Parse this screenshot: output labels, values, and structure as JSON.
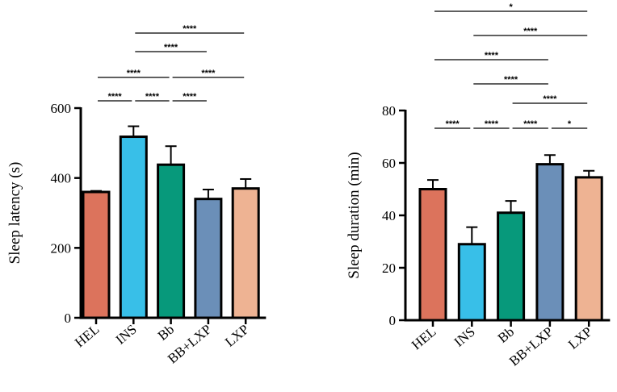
{
  "chart_data": [
    {
      "type": "bar",
      "categories": [
        "HEL",
        "INS",
        "Bb",
        "BB+LXP",
        "LXP"
      ],
      "colors": [
        "#dc735c",
        "#38bfe8",
        "#07997b",
        "#6b8fb8",
        "#eeb393"
      ],
      "values": [
        360,
        518,
        438,
        340,
        370
      ],
      "errors": [
        3,
        30,
        53,
        27,
        27
      ],
      "ylabel": "Sleep latency (s)",
      "ylim": [
        0,
        600
      ],
      "yticks": [
        0,
        200,
        400,
        600
      ],
      "significance": [
        {
          "from": 0,
          "to": 1,
          "label": "****"
        },
        {
          "from": 1,
          "to": 2,
          "label": "****"
        },
        {
          "from": 2,
          "to": 3,
          "label": "****"
        },
        {
          "from": 0,
          "to": 2,
          "label": "****"
        },
        {
          "from": 2,
          "to": 4,
          "label": "****"
        },
        {
          "from": 1,
          "to": 3,
          "label": "****"
        },
        {
          "from": 1,
          "to": 4,
          "label": "****"
        }
      ]
    },
    {
      "type": "bar",
      "categories": [
        "HEL",
        "INS",
        "Bb",
        "BB+LXP",
        "LXP"
      ],
      "colors": [
        "#dc735c",
        "#38bfe8",
        "#07997b",
        "#6b8fb8",
        "#eeb393"
      ],
      "values": [
        50,
        29,
        41,
        59.5,
        54.5
      ],
      "errors": [
        3.5,
        6.5,
        4.5,
        3.5,
        2.5
      ],
      "ylabel": "Sleep duration (min)",
      "ylim": [
        0,
        80
      ],
      "yticks": [
        0,
        20,
        40,
        60,
        80
      ],
      "significance": [
        {
          "from": 0,
          "to": 1,
          "label": "****"
        },
        {
          "from": 1,
          "to": 2,
          "label": "****"
        },
        {
          "from": 2,
          "to": 3,
          "label": "****"
        },
        {
          "from": 3,
          "to": 4,
          "label": "*"
        },
        {
          "from": 2,
          "to": 4,
          "label": "****"
        },
        {
          "from": 1,
          "to": 3,
          "label": "****"
        },
        {
          "from": 0,
          "to": 3,
          "label": "****"
        },
        {
          "from": 1,
          "to": 4,
          "label": "****"
        },
        {
          "from": 0,
          "to": 4,
          "label": "*"
        }
      ]
    }
  ]
}
